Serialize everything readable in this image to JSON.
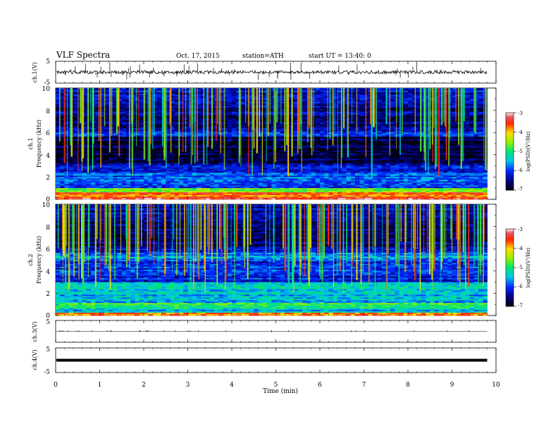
{
  "header": {
    "title": "VLF  Spectra",
    "date": "Oct. 17, 2015",
    "station": "station=ATH",
    "start": "start  UT  =   13:40: 0"
  },
  "chart_data": [
    {
      "id": "ch1-waveform",
      "type": "line",
      "ylabel": "ch.1(V)",
      "ylim": [
        -5,
        5
      ],
      "y_ticks": [
        "5",
        "-5"
      ],
      "baseline": 0,
      "noise_amplitude": 0.35,
      "xlim": [
        0,
        10
      ],
      "data_end_min": 9.8
    },
    {
      "id": "ch1-spectrogram",
      "type": "heatmap",
      "channel_label": "ch.1",
      "ylabel": "Frequency  (kHz)",
      "ylim": [
        0,
        10
      ],
      "y_ticks": [
        "10",
        "8",
        "6",
        "4",
        "2",
        "0"
      ],
      "xlim": [
        0,
        10
      ],
      "data_end_min": 9.8,
      "colorbar": {
        "label": "log(PSD)(V²/Hz)",
        "range": [
          -7,
          -3
        ],
        "ticks": [
          "-3",
          "-4",
          "-5",
          "-6",
          "-7"
        ]
      }
    },
    {
      "id": "ch2-spectrogram",
      "type": "heatmap",
      "channel_label": "ch.2",
      "ylabel": "Frequency  (kHz)",
      "ylim": [
        0,
        10
      ],
      "y_ticks": [
        "10",
        "8",
        "6",
        "4",
        "2",
        "0"
      ],
      "xlim": [
        0,
        10
      ],
      "data_end_min": 9.8,
      "colorbar": {
        "label": "log(PSD)(V²/Hz)",
        "range": [
          -7,
          -3
        ],
        "ticks": [
          "-3",
          "-4",
          "-5",
          "-6",
          "-7"
        ]
      }
    },
    {
      "id": "ch3-waveform",
      "type": "line",
      "ylabel": "ch.3(V)",
      "ylim": [
        -5,
        5
      ],
      "y_ticks": [
        "5"
      ],
      "baseline": 0,
      "xlim": [
        0,
        10
      ],
      "data_end_min": 9.8
    },
    {
      "id": "ch4-waveform",
      "type": "line",
      "ylabel": "ch.4(V)",
      "ylim": [
        -5,
        5
      ],
      "y_ticks": [
        "5",
        "-5"
      ],
      "baseline": 0,
      "xlim": [
        0,
        10
      ],
      "data_end_min": 9.8
    }
  ],
  "x_axis": {
    "label": "Time  (min)",
    "ticks": [
      "0",
      "1",
      "2",
      "3",
      "4",
      "5",
      "6",
      "7",
      "8",
      "9",
      "10"
    ]
  }
}
